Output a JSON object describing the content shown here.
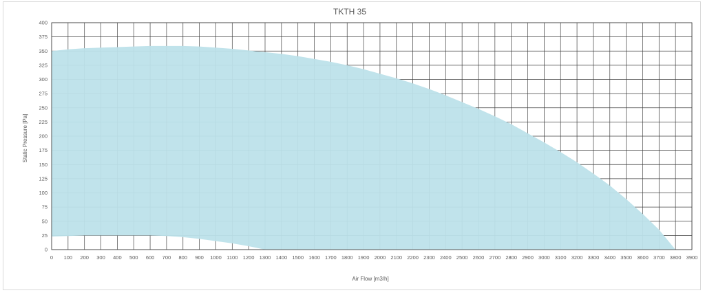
{
  "chart_data": {
    "type": "area",
    "title": "TKTH 35",
    "xlabel": "Air Flow [m3/h]",
    "ylabel": "Static Pressure [Pa]",
    "xlim": [
      0,
      3900
    ],
    "ylim": [
      0,
      400
    ],
    "x_ticks": [
      0,
      100,
      200,
      300,
      400,
      500,
      600,
      700,
      800,
      900,
      1000,
      1100,
      1200,
      1300,
      1400,
      1500,
      1600,
      1700,
      1800,
      1900,
      2000,
      2100,
      2200,
      2300,
      2400,
      2500,
      2600,
      2700,
      2800,
      2900,
      3000,
      3100,
      3200,
      3300,
      3400,
      3500,
      3600,
      3700,
      3800,
      3900
    ],
    "y_ticks": [
      0,
      25,
      50,
      75,
      100,
      125,
      150,
      175,
      200,
      225,
      250,
      275,
      300,
      325,
      350,
      375,
      400
    ],
    "grid": true,
    "legend": "none",
    "fill_color": "#bde2ea",
    "grid_color": "#404040",
    "series": [
      {
        "upper": {
          "x": [
            0,
            100,
            200,
            300,
            400,
            500,
            600,
            700,
            800,
            900,
            1000,
            1100,
            1200,
            1300,
            1400,
            1500,
            1600,
            1700,
            1800,
            1900,
            2000,
            2100,
            2200,
            2300,
            2400,
            2500,
            2600,
            2700,
            2800,
            2900,
            3000,
            3100,
            3200,
            3300,
            3400,
            3500,
            3600,
            3700,
            3800
          ],
          "y": [
            350,
            353,
            355,
            356,
            357,
            358,
            359,
            359,
            359,
            358,
            356,
            354,
            351,
            348,
            345,
            341,
            336,
            331,
            325,
            318,
            310,
            302,
            293,
            283,
            272,
            260,
            248,
            235,
            221,
            205,
            189,
            172,
            154,
            134,
            113,
            89,
            63,
            35,
            0
          ]
        },
        "lower": {
          "x": [
            0,
            100,
            200,
            300,
            400,
            500,
            600,
            700,
            800,
            900,
            1000,
            1100,
            1200,
            1300,
            3800
          ],
          "y": [
            23,
            24,
            25,
            25,
            25,
            25,
            25,
            24,
            22,
            19,
            15,
            11,
            6,
            0,
            0
          ]
        }
      }
    ]
  }
}
